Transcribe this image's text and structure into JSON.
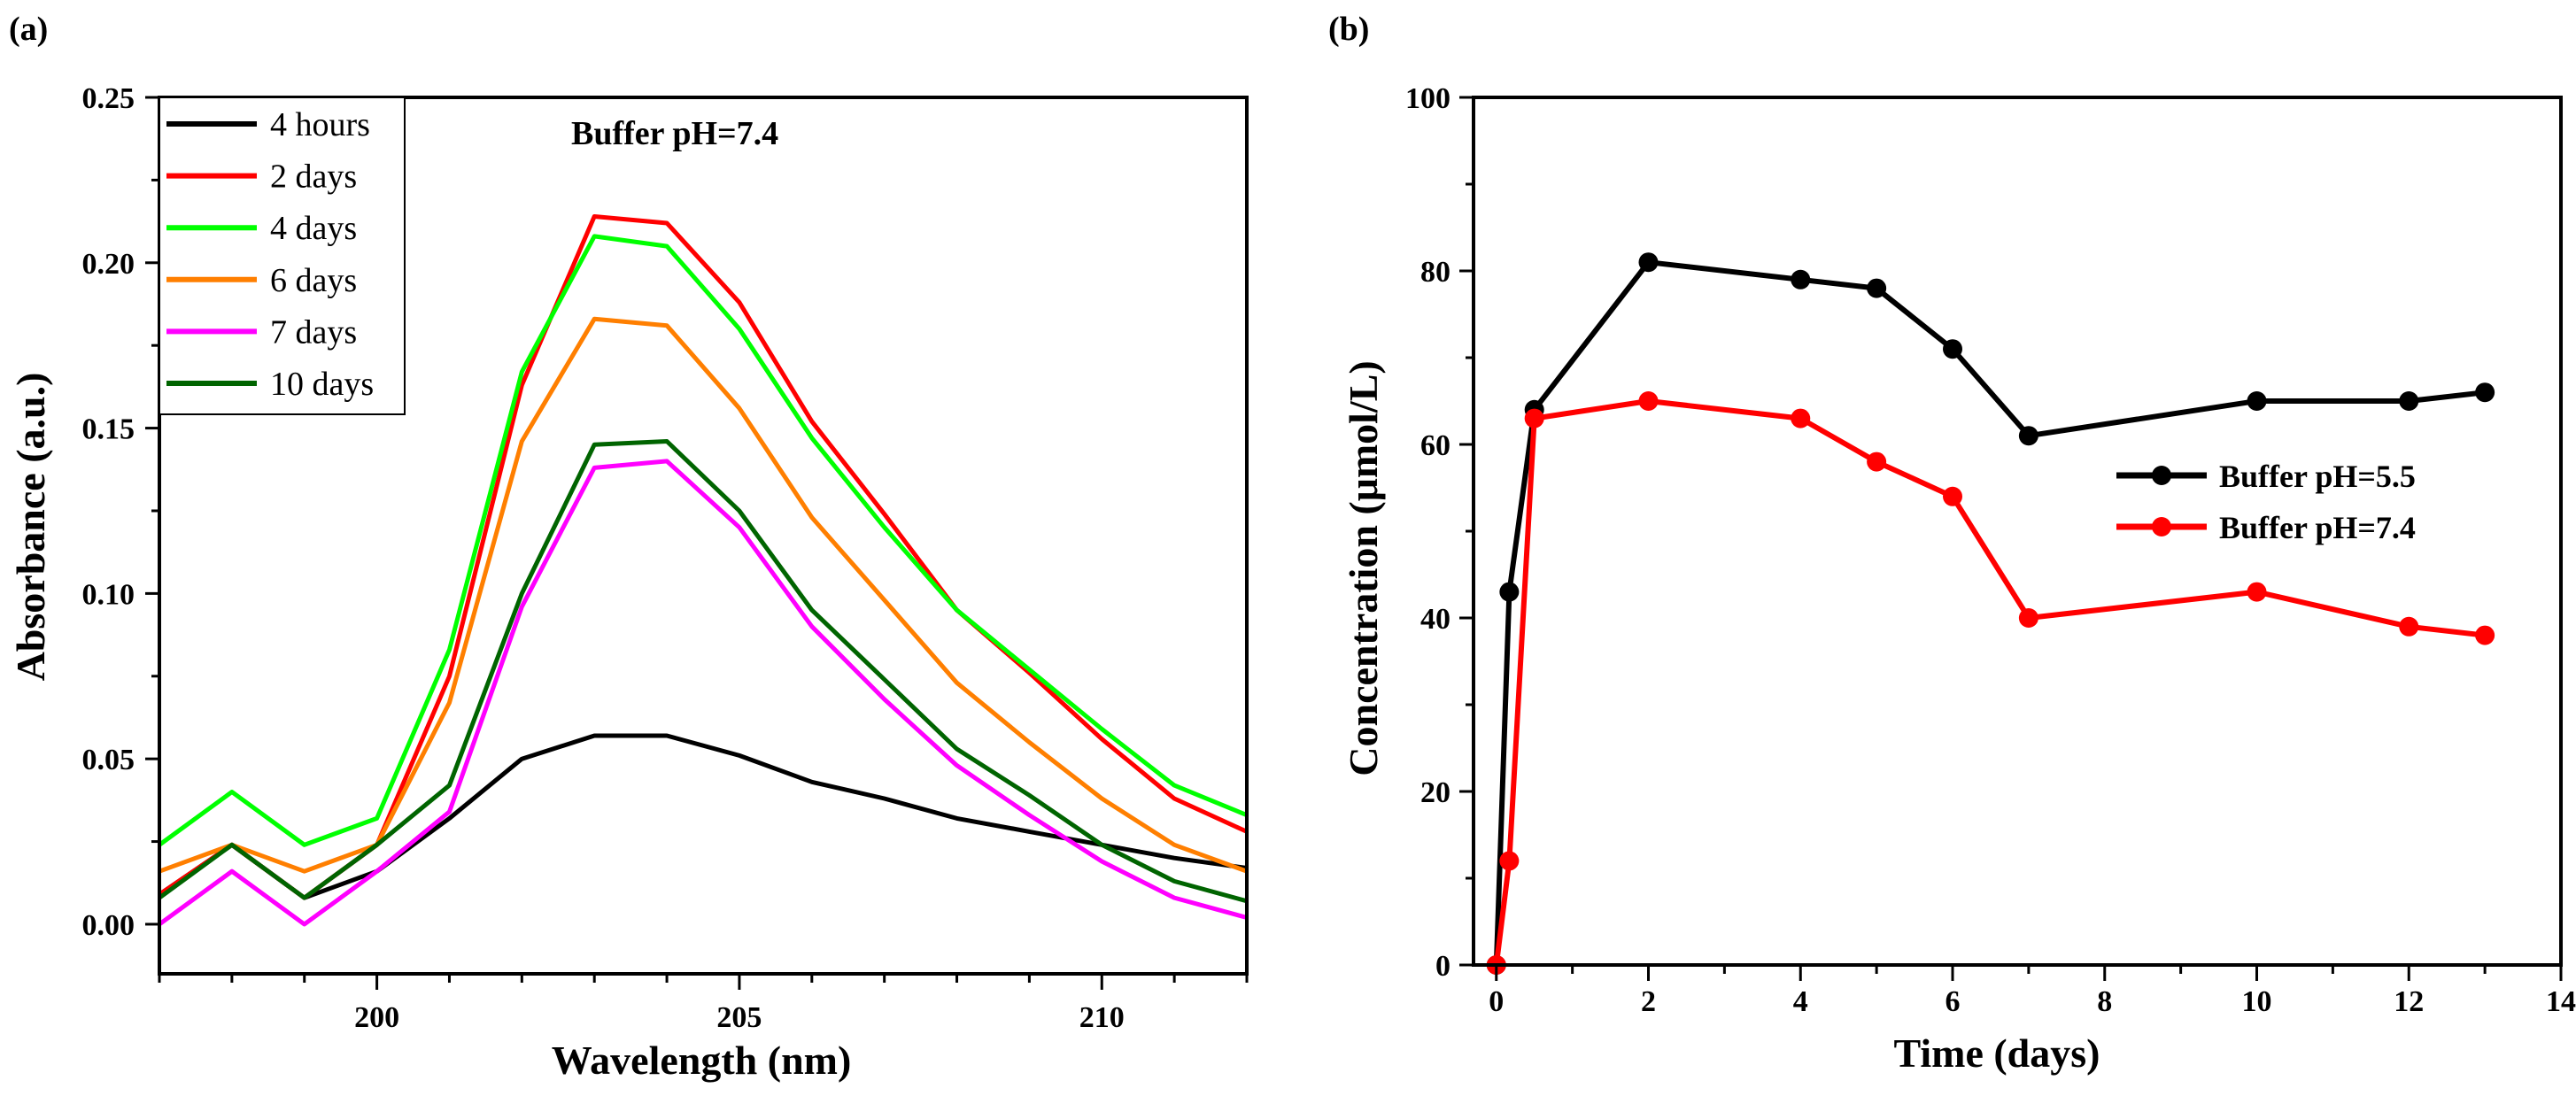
{
  "chart_data": [
    {
      "panel": "(a)",
      "type": "line",
      "title": "",
      "annotation": "Buffer pH=7.4",
      "xlabel": "Wavelength (nm)",
      "ylabel": "Absorbance (a.u.)",
      "xlim": [
        197,
        212
      ],
      "ylim": [
        -0.015,
        0.25
      ],
      "xticks": [
        200,
        205,
        210
      ],
      "yticks": [
        0.0,
        0.05,
        0.1,
        0.15,
        0.2,
        0.25
      ],
      "ytick_labels": [
        "0.00",
        "0.05",
        "0.10",
        "0.15",
        "0.20",
        "0.25"
      ],
      "xtick_labels": [
        "200",
        "205",
        "210"
      ],
      "x": [
        197,
        198,
        199,
        200,
        201,
        202,
        203,
        204,
        205,
        206,
        207,
        208,
        209,
        210,
        211,
        212
      ],
      "legend_position": "top-left",
      "series": [
        {
          "name": "4 hours",
          "color": "#000000",
          "values": [
            0.009,
            0.024,
            0.008,
            0.016,
            0.032,
            0.05,
            0.057,
            0.057,
            0.051,
            0.043,
            0.038,
            0.032,
            0.028,
            0.024,
            0.02,
            0.017
          ]
        },
        {
          "name": "2 days",
          "color": "#ff0000",
          "values": [
            0.009,
            0.024,
            0.008,
            0.024,
            0.075,
            0.163,
            0.214,
            0.212,
            0.188,
            0.152,
            0.124,
            0.095,
            0.076,
            0.056,
            0.038,
            0.028
          ]
        },
        {
          "name": "4 days",
          "color": "#00ff00",
          "values": [
            0.024,
            0.04,
            0.024,
            0.032,
            0.083,
            0.167,
            0.208,
            0.205,
            0.18,
            0.147,
            0.12,
            0.095,
            0.077,
            0.059,
            0.042,
            0.033
          ]
        },
        {
          "name": "6 days",
          "color": "#ff7f00",
          "values": [
            0.016,
            0.024,
            0.016,
            0.024,
            0.067,
            0.146,
            0.183,
            0.181,
            0.156,
            0.123,
            0.098,
            0.073,
            0.055,
            0.038,
            0.024,
            0.016
          ]
        },
        {
          "name": "7 days",
          "color": "#ff00ff",
          "values": [
            0.0,
            0.016,
            0.0,
            0.016,
            0.034,
            0.096,
            0.138,
            0.14,
            0.12,
            0.09,
            0.068,
            0.048,
            0.033,
            0.019,
            0.008,
            0.002
          ]
        },
        {
          "name": "10 days",
          "color": "#006400",
          "values": [
            0.008,
            0.024,
            0.008,
            0.024,
            0.042,
            0.1,
            0.145,
            0.146,
            0.125,
            0.095,
            0.074,
            0.053,
            0.039,
            0.024,
            0.013,
            0.007
          ]
        }
      ]
    },
    {
      "panel": "(b)",
      "type": "line",
      "title": "",
      "xlabel": "Time (days)",
      "ylabel": "Concentration (μmol/L)",
      "xlim": [
        -0.3,
        14
      ],
      "ylim": [
        0,
        100
      ],
      "xticks": [
        0,
        2,
        4,
        6,
        8,
        10,
        12,
        14
      ],
      "yticks": [
        0,
        20,
        40,
        60,
        80,
        100
      ],
      "xtick_labels": [
        "0",
        "2",
        "4",
        "6",
        "8",
        "10",
        "12",
        "14"
      ],
      "ytick_labels": [
        "0",
        "20",
        "40",
        "60",
        "80",
        "100"
      ],
      "legend_position": "center-right",
      "series": [
        {
          "name": "Buffer pH=5.5",
          "color": "#000000",
          "x": [
            0,
            0.17,
            0.5,
            2,
            4,
            5,
            6,
            7,
            10,
            12,
            13
          ],
          "values": [
            0,
            43,
            64,
            81,
            79,
            78,
            71,
            61,
            65,
            65,
            66
          ]
        },
        {
          "name": "Buffer pH=7.4",
          "color": "#ff0000",
          "x": [
            0,
            0.17,
            0.5,
            2,
            4,
            5,
            6,
            7,
            10,
            12,
            13
          ],
          "values": [
            0,
            12,
            63,
            65,
            63,
            58,
            54,
            40,
            43,
            39,
            38
          ]
        }
      ]
    }
  ]
}
